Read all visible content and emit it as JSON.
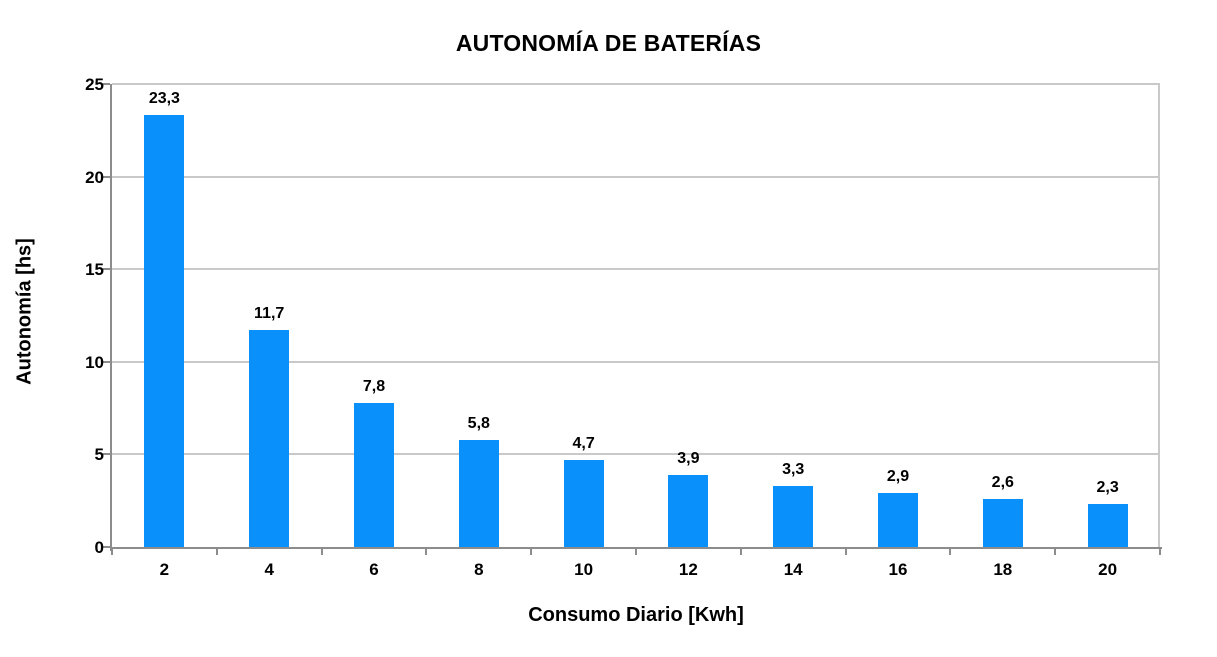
{
  "chart_data": {
    "type": "bar",
    "title": "AUTONOMÍA DE BATERÍAS",
    "xlabel": "Consumo Diario [Kwh]",
    "ylabel": "Autonomía [hs]",
    "categories": [
      "2",
      "4",
      "6",
      "8",
      "10",
      "12",
      "14",
      "16",
      "18",
      "20"
    ],
    "values": [
      23.3,
      11.7,
      7.8,
      5.8,
      4.7,
      3.9,
      3.3,
      2.9,
      2.6,
      2.3
    ],
    "value_labels": [
      "23,3",
      "11,7",
      "7,8",
      "5,8",
      "4,7",
      "3,9",
      "3,3",
      "2,9",
      "2,6",
      "2,3"
    ],
    "ylim": [
      0,
      25
    ],
    "yticks": [
      0,
      5,
      10,
      15,
      20,
      25
    ],
    "ytick_labels": [
      "0",
      "5",
      "10",
      "15",
      "20",
      "25"
    ],
    "grid": true,
    "legend": false,
    "decimal_separator": ",",
    "colors": {
      "bar": "#0A90FB",
      "gridline": "#C9C9C9",
      "axis": "#8C8C8C",
      "text": "#000000",
      "background": "#FFFFFF"
    }
  }
}
